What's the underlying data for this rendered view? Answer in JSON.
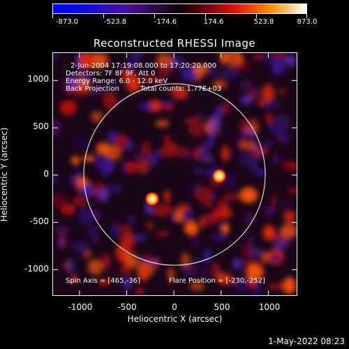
{
  "colorbar": {
    "labels": [
      "-873.0",
      "-523.8",
      "-174.6",
      "174.6",
      "523.8",
      "873.0"
    ]
  },
  "title": "Reconstructed RHESSI Image",
  "info": {
    "time_range": "2-Jun-2004 17:19:08.000 to 17:20:20.000",
    "detectors": "Detectors: 7F 8F 9F, Att 0",
    "energy_range": "Energy Range: 6.0 - 12.0 keV",
    "method": "Back Projection",
    "total_counts": "Total counts: 1.77E+03",
    "spin_axis": "Spin Axis = [465,-36]",
    "flare_position": "Flare Position = [-230,-252]"
  },
  "axes": {
    "xlabel": "Heliocentric X (arcsec)",
    "ylabel": "Heliocentric Y (arcsec)",
    "xticks": [
      "-1000",
      "-500",
      "0",
      "500",
      "1000"
    ],
    "yticks": [
      "1000",
      "500",
      "0",
      "-500",
      "-1000"
    ]
  },
  "date_stamp": "1-May-2022 08:23",
  "sources": [
    {
      "name": "flare-source",
      "x": -230,
      "y": -252
    },
    {
      "name": "secondary-source",
      "x": 480,
      "y": -10
    }
  ]
}
